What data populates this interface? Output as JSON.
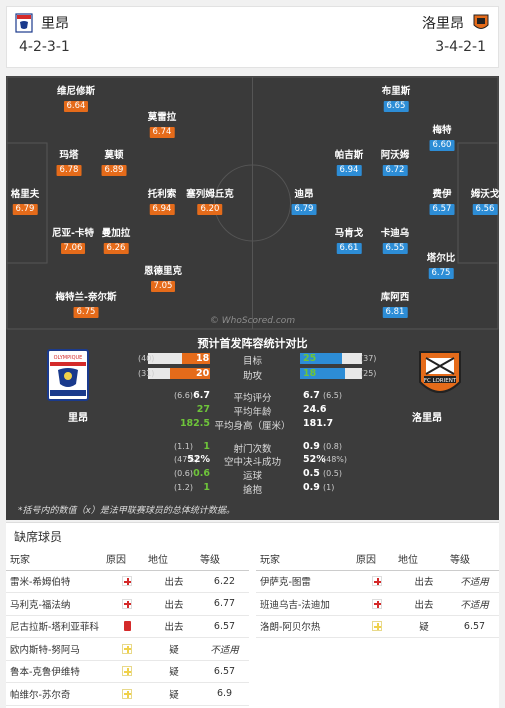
{
  "header": {
    "home_name": "里昂",
    "away_name": "洛里昂",
    "home_formation": "4-2-3-1",
    "away_formation": "3-4-2-1"
  },
  "home_players": [
    {
      "name": "维尼修斯",
      "rating": "6.64"
    },
    {
      "name": "莫雷拉",
      "rating": "6.74"
    },
    {
      "name": "玛塔",
      "rating": "6.78"
    },
    {
      "name": "莫顿",
      "rating": "6.89"
    },
    {
      "name": "格里夫",
      "rating": "6.79"
    },
    {
      "name": "托利索",
      "rating": "6.94"
    },
    {
      "name": "塞列姆丘克",
      "rating": "6.20"
    },
    {
      "name": "尼亚-卡特",
      "rating": "7.06"
    },
    {
      "name": "曼加拉",
      "rating": "6.26"
    },
    {
      "name": "恩德里克",
      "rating": "7.05"
    },
    {
      "name": "梅特兰-奈尔斯",
      "rating": "6.75"
    }
  ],
  "away_players": [
    {
      "name": "布里斯",
      "rating": "6.65"
    },
    {
      "name": "梅特",
      "rating": "6.60"
    },
    {
      "name": "帕吉斯",
      "rating": "6.94"
    },
    {
      "name": "阿沃姆",
      "rating": "6.72"
    },
    {
      "name": "迪昂",
      "rating": "6.79"
    },
    {
      "name": "费伊",
      "rating": "6.57"
    },
    {
      "name": "姆沃戈",
      "rating": "6.56"
    },
    {
      "name": "马肯戈",
      "rating": "6.61"
    },
    {
      "name": "卡迪乌",
      "rating": "6.55"
    },
    {
      "name": "塔尔比",
      "rating": "6.75"
    },
    {
      "name": "库阿西",
      "rating": "6.81"
    }
  ],
  "watermark": "© WhoScored.com",
  "stats": {
    "title": "预计首发阵容统计对比",
    "home_team": "里昂",
    "away_team": "洛里昂",
    "bars": [
      {
        "label": "目标",
        "home": "18",
        "home_note": "(40)",
        "away": "25",
        "away_note": "(37)",
        "home_frac": 0.45,
        "away_frac": 0.68
      },
      {
        "label": "助攻",
        "home": "20",
        "home_note": "(31)",
        "away": "18",
        "away_note": "(25)",
        "home_frac": 0.65,
        "away_frac": 0.72
      }
    ],
    "rows": [
      {
        "label": "平均评分",
        "home": "6.7",
        "home_note": "(6.6)",
        "away": "6.7",
        "away_note": "(6.5)",
        "home_class": "white"
      },
      {
        "label": "平均年龄",
        "home": "27",
        "home_note": "",
        "away": "24.6",
        "away_note": "",
        "home_class": "green"
      },
      {
        "label": "平均身高（厘米）",
        "home": "182.5",
        "home_note": "",
        "away": "181.7",
        "away_note": "",
        "home_class": "green"
      },
      {
        "label": "射门次数",
        "home": "1",
        "home_note": "(1.1)",
        "away": "0.9",
        "away_note": "(0.8)",
        "home_class": "green"
      },
      {
        "label": "空中决斗成功",
        "home": "52%",
        "home_note": "(47%)",
        "away": "52%",
        "away_note": "(48%)",
        "home_class": "white"
      },
      {
        "label": "运球",
        "home": "0.6",
        "home_note": "(0.6)",
        "away": "0.5",
        "away_note": "(0.5)",
        "home_class": "green"
      },
      {
        "label": "搶抱",
        "home": "1",
        "home_note": "(1.2)",
        "away": "0.9",
        "away_note": "(1)",
        "home_class": "green"
      }
    ],
    "footnote": "*括号内的数值（x）是法甲联赛球员的总体统计数据。"
  },
  "absent": {
    "title": "缺席球员",
    "headers": {
      "player": "玩家",
      "reason": "原因",
      "status": "地位",
      "rating": "等级"
    },
    "home": [
      {
        "name": "雷米-希姆伯特",
        "icon": "injury",
        "status": "出去",
        "rating": "6.22"
      },
      {
        "name": "马利克-福法纳",
        "icon": "injury",
        "status": "出去",
        "rating": "6.77"
      },
      {
        "name": "尼古拉斯-塔利亚菲科",
        "icon": "red-card",
        "status": "出去",
        "rating": "6.57"
      },
      {
        "name": "欧内斯特-努阿马",
        "icon": "doubt",
        "status": "疑",
        "rating": "不适用"
      },
      {
        "name": "鲁本-克鲁伊维特",
        "icon": "doubt",
        "status": "疑",
        "rating": "6.57"
      },
      {
        "name": "帕维尔-苏尔奇",
        "icon": "doubt",
        "status": "疑",
        "rating": "6.9"
      }
    ],
    "away": [
      {
        "name": "伊萨克-图雷",
        "icon": "injury",
        "status": "出去",
        "rating": "不适用"
      },
      {
        "name": "班迪乌吉-法迪加",
        "icon": "injury",
        "status": "出去",
        "rating": "不适用"
      },
      {
        "name": "洛朗-阿贝尔热",
        "icon": "doubt",
        "status": "疑",
        "rating": "6.57"
      }
    ]
  },
  "colors": {
    "home_accent": "#e56b1a",
    "away_accent": "#2d8dd6",
    "pitch": "#3a3a3a",
    "green": "#6ec43a"
  }
}
